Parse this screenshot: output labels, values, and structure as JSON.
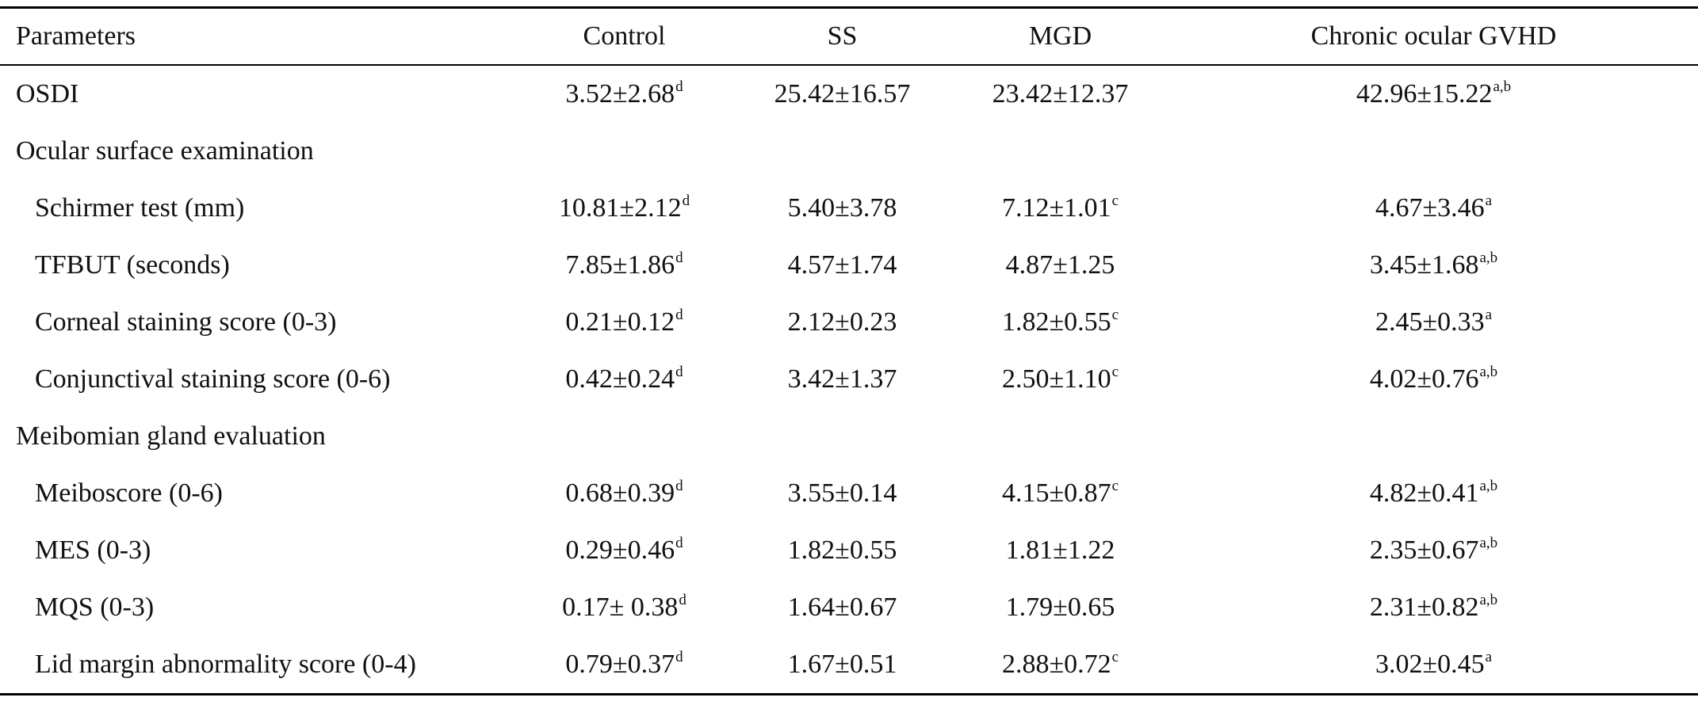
{
  "table": {
    "headers": [
      "Parameters",
      "Control",
      "SS",
      "MGD",
      "Chronic ocular GVHD"
    ],
    "rows": [
      {
        "type": "data",
        "label": "OSDI",
        "indent": false,
        "cells": [
          {
            "v": "3.52±2.68",
            "s": "d"
          },
          {
            "v": "25.42±16.57",
            "s": ""
          },
          {
            "v": "23.42±12.37",
            "s": ""
          },
          {
            "v": "42.96±15.22",
            "s": "a,b"
          }
        ]
      },
      {
        "type": "section",
        "label": "Ocular surface examination"
      },
      {
        "type": "data",
        "label": "Schirmer test (mm)",
        "indent": true,
        "cells": [
          {
            "v": "10.81±2.12",
            "s": "d"
          },
          {
            "v": "5.40±3.78",
            "s": ""
          },
          {
            "v": "7.12±1.01",
            "s": "c"
          },
          {
            "v": "4.67±3.46",
            "s": "a"
          }
        ]
      },
      {
        "type": "data",
        "label": "TFBUT (seconds)",
        "indent": true,
        "cells": [
          {
            "v": "7.85±1.86",
            "s": "d"
          },
          {
            "v": "4.57±1.74",
            "s": ""
          },
          {
            "v": "4.87±1.25",
            "s": ""
          },
          {
            "v": "3.45±1.68",
            "s": "a,b"
          }
        ]
      },
      {
        "type": "data",
        "label": "Corneal staining score (0-3)",
        "indent": true,
        "cells": [
          {
            "v": "0.21±0.12",
            "s": "d"
          },
          {
            "v": "2.12±0.23",
            "s": ""
          },
          {
            "v": "1.82±0.55",
            "s": "c"
          },
          {
            "v": "2.45±0.33",
            "s": "a"
          }
        ]
      },
      {
        "type": "data",
        "label": "Conjunctival staining score (0-6)",
        "indent": true,
        "cells": [
          {
            "v": "0.42±0.24",
            "s": "d"
          },
          {
            "v": "3.42±1.37",
            "s": ""
          },
          {
            "v": "2.50±1.10",
            "s": "c"
          },
          {
            "v": "4.02±0.76",
            "s": "a,b"
          }
        ]
      },
      {
        "type": "section",
        "label": "Meibomian gland evaluation"
      },
      {
        "type": "data",
        "label": "Meiboscore (0-6)",
        "indent": true,
        "cells": [
          {
            "v": "0.68±0.39",
            "s": "d"
          },
          {
            "v": "3.55±0.14",
            "s": ""
          },
          {
            "v": "4.15±0.87",
            "s": "c"
          },
          {
            "v": "4.82±0.41",
            "s": "a,b"
          }
        ]
      },
      {
        "type": "data",
        "label": "MES (0-3)",
        "indent": true,
        "cells": [
          {
            "v": "0.29±0.46",
            "s": "d"
          },
          {
            "v": "1.82±0.55",
            "s": ""
          },
          {
            "v": "1.81±1.22",
            "s": ""
          },
          {
            "v": "2.35±0.67",
            "s": "a,b"
          }
        ]
      },
      {
        "type": "data",
        "label": "MQS (0-3)",
        "indent": true,
        "cells": [
          {
            "v": "0.17± 0.38",
            "s": "d"
          },
          {
            "v": "1.64±0.67",
            "s": ""
          },
          {
            "v": "1.79±0.65",
            "s": ""
          },
          {
            "v": "2.31±0.82",
            "s": "a,b"
          }
        ]
      },
      {
        "type": "data",
        "label": "Lid margin abnormality score (0-4)",
        "indent": true,
        "cells": [
          {
            "v": "0.79±0.37",
            "s": "d"
          },
          {
            "v": "1.67±0.51",
            "s": ""
          },
          {
            "v": "2.88±0.72",
            "s": "c"
          },
          {
            "v": "3.02±0.45",
            "s": "a"
          }
        ]
      }
    ]
  }
}
